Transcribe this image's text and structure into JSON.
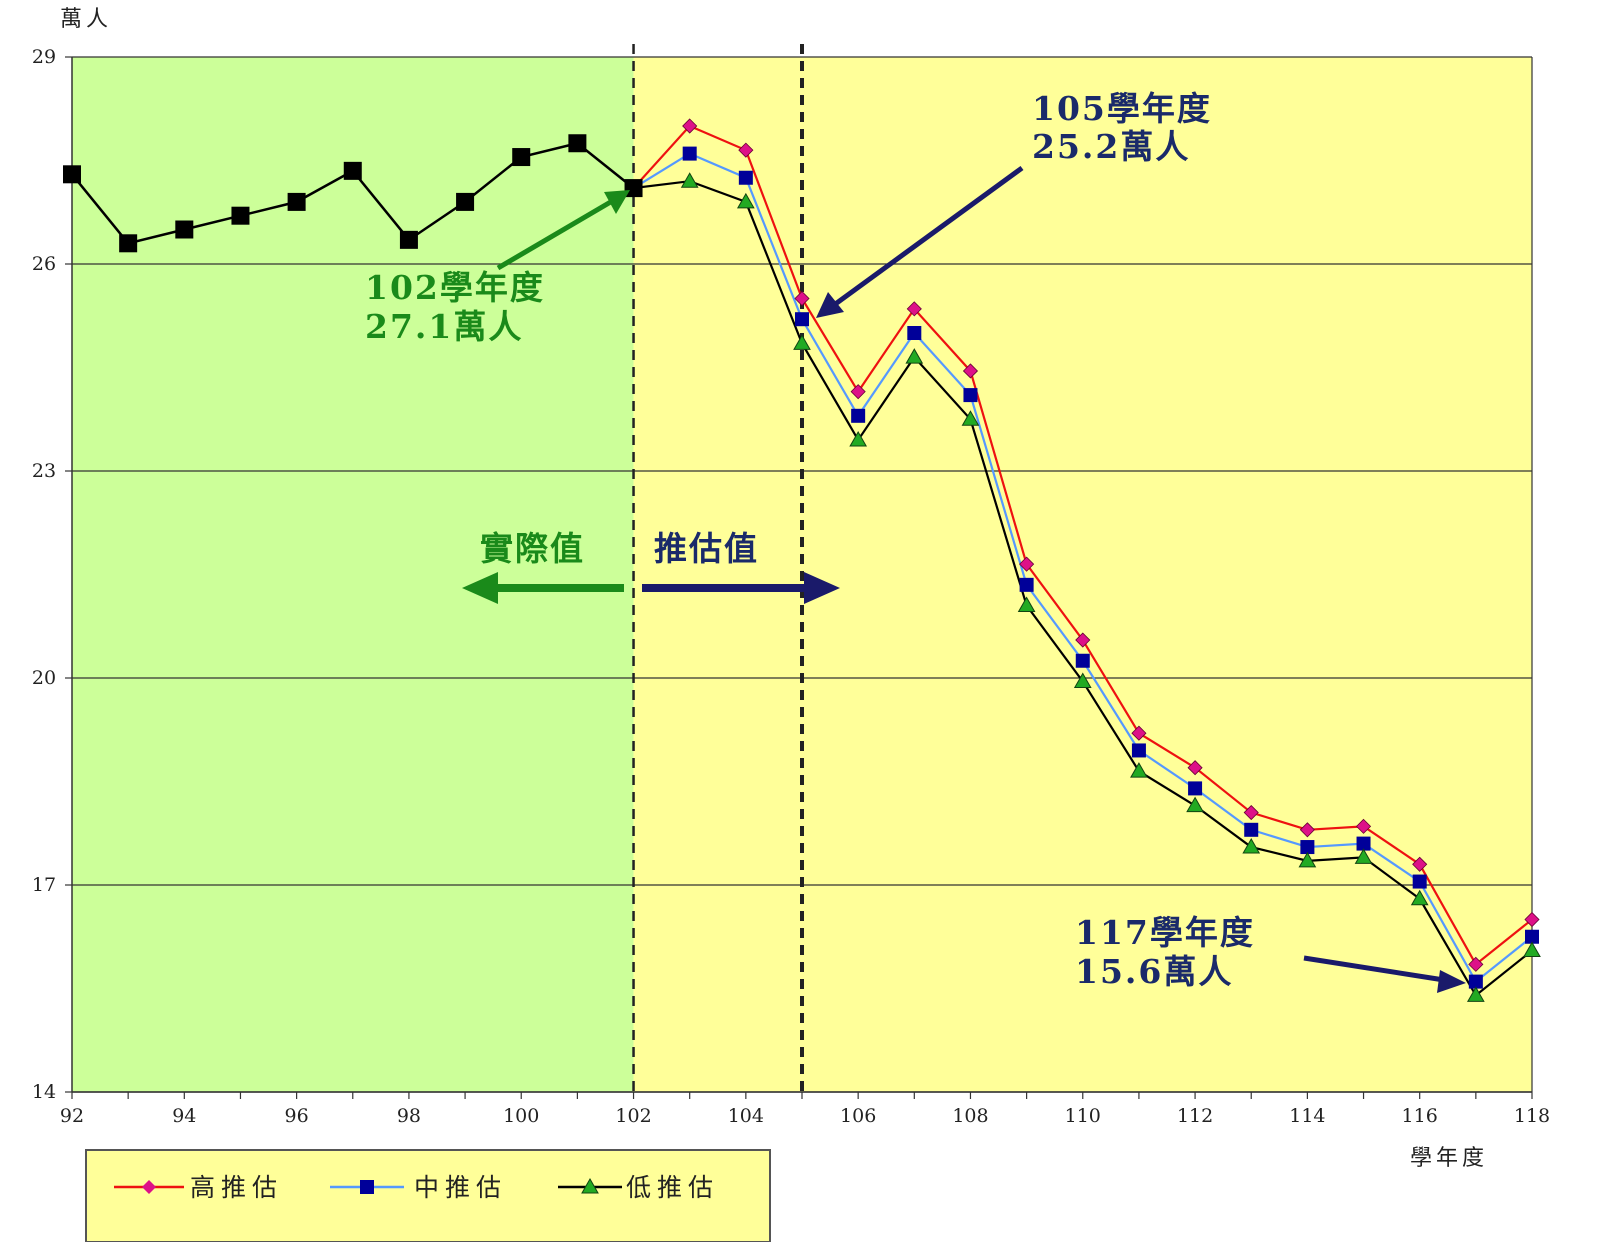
{
  "chart_data": {
    "type": "line",
    "ylabel": "萬人",
    "xlabel": "學年度",
    "ylim": [
      14,
      29
    ],
    "yticks": [
      14,
      17,
      20,
      23,
      26,
      29
    ],
    "xlim": [
      92,
      118
    ],
    "xticks": [
      92,
      94,
      96,
      98,
      100,
      102,
      104,
      106,
      108,
      110,
      112,
      114,
      116,
      118
    ],
    "grid": "horizontal",
    "regions": [
      {
        "label": "實際值",
        "from": 92,
        "to": 102,
        "color": "#ccff99"
      },
      {
        "label": "推估值",
        "from": 102,
        "to": 118,
        "color": "#ffff99"
      }
    ],
    "dividers": [
      102,
      105
    ],
    "actual": {
      "x": [
        92,
        93,
        94,
        95,
        96,
        97,
        98,
        99,
        100,
        101,
        102
      ],
      "values": [
        27.3,
        26.3,
        26.5,
        26.7,
        26.9,
        27.35,
        26.35,
        26.9,
        27.55,
        27.75,
        27.1
      ],
      "color": "#000000"
    },
    "series": [
      {
        "name": "高推估",
        "color": "#ee1111",
        "marker": "diamond",
        "marker_color": "#dd1188",
        "x": [
          102,
          103,
          104,
          105,
          106,
          107,
          108,
          109,
          110,
          111,
          112,
          113,
          114,
          115,
          116,
          117,
          118
        ],
        "values": [
          27.1,
          28.0,
          27.65,
          25.5,
          24.15,
          25.35,
          24.45,
          21.65,
          20.55,
          19.2,
          18.7,
          18.05,
          17.8,
          17.85,
          17.3,
          15.85,
          16.5
        ]
      },
      {
        "name": "中推估",
        "color": "#5599ff",
        "marker": "square",
        "marker_color": "#000099",
        "x": [
          102,
          103,
          104,
          105,
          106,
          107,
          108,
          109,
          110,
          111,
          112,
          113,
          114,
          115,
          116,
          117,
          118
        ],
        "values": [
          27.1,
          27.6,
          27.25,
          25.2,
          23.8,
          25.0,
          24.1,
          21.35,
          20.25,
          18.95,
          18.4,
          17.8,
          17.55,
          17.6,
          17.05,
          15.6,
          16.25
        ]
      },
      {
        "name": "低推估",
        "color": "#000000",
        "marker": "triangle",
        "marker_color": "#22aa22",
        "x": [
          102,
          103,
          104,
          105,
          106,
          107,
          108,
          109,
          110,
          111,
          112,
          113,
          114,
          115,
          116,
          117,
          118
        ],
        "values": [
          27.1,
          27.2,
          26.9,
          24.85,
          23.45,
          24.65,
          23.75,
          21.05,
          19.95,
          18.65,
          18.15,
          17.55,
          17.35,
          17.4,
          16.8,
          15.4,
          16.05
        ]
      }
    ],
    "annotations": [
      {
        "line1": "102學年度",
        "line2": "27.1萬人",
        "color": "#1a8a1a",
        "target_x": 102,
        "target_y": 27.1
      },
      {
        "line1": "105學年度",
        "line2": "25.2萬人",
        "color": "#1a2a6a",
        "target_x": 105,
        "target_y": 25.2
      },
      {
        "line1": "117學年度",
        "line2": "15.6萬人",
        "color": "#1a2a6a",
        "target_x": 117,
        "target_y": 15.6
      }
    ],
    "region_labels": {
      "left": "實際值",
      "right": "推估值"
    }
  }
}
